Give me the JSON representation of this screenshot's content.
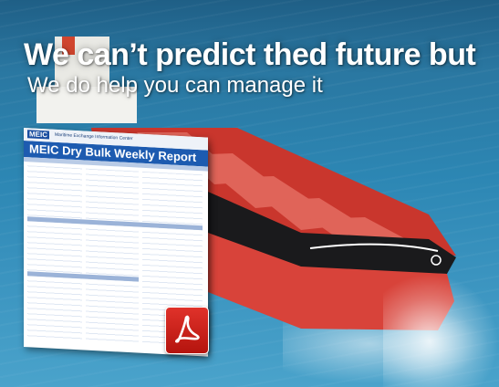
{
  "banner": {
    "headline": "We can’t predict thed future but",
    "subline": "We do help you can manage it"
  },
  "report": {
    "logo": "MEIC",
    "organization": "Maritime Exchange Information Center",
    "title": "MEIC Dry Bulk Weekly Report"
  },
  "colors": {
    "hull": "#d8433a",
    "deck": "#c9362d",
    "hatch": "#e06459",
    "sea": "#2c86b3",
    "report_header": "#1d5bb0",
    "pdf_icon": "#d8261f"
  },
  "icons": [
    "pdf-icon"
  ]
}
